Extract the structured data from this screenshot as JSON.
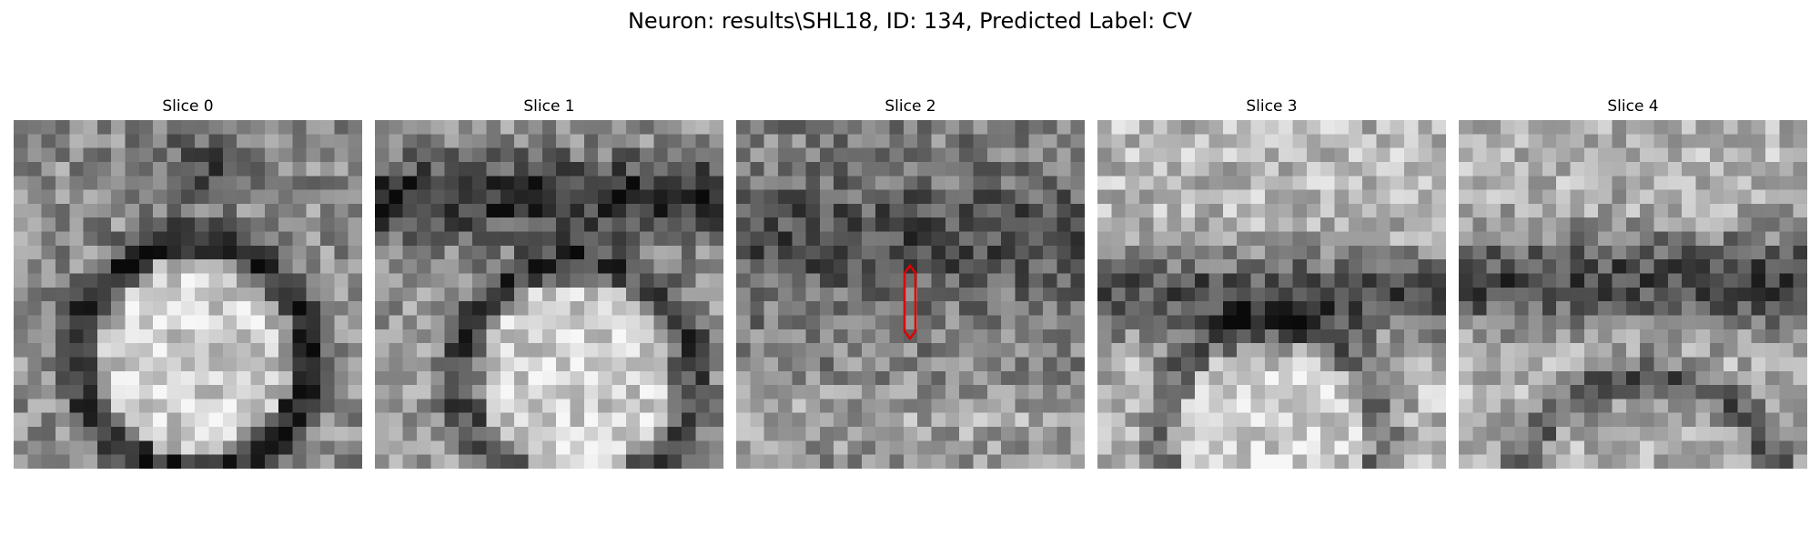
{
  "figure": {
    "title": "Neuron: results\\SHL18, ID: 134, Predicted Label: CV"
  },
  "slices": [
    {
      "title": "Slice 0",
      "pattern": "ring-center",
      "seed": 11
    },
    {
      "title": "Slice 1",
      "pattern": "band-blob",
      "seed": 23
    },
    {
      "title": "Slice 2",
      "pattern": "noisy-vesicle",
      "seed": 37,
      "annotation": "red-outline"
    },
    {
      "title": "Slice 3",
      "pattern": "band-lower-blob",
      "seed": 41
    },
    {
      "title": "Slice 4",
      "pattern": "band-arc",
      "seed": 53
    }
  ],
  "colors": {
    "annotation": "#e00000"
  }
}
